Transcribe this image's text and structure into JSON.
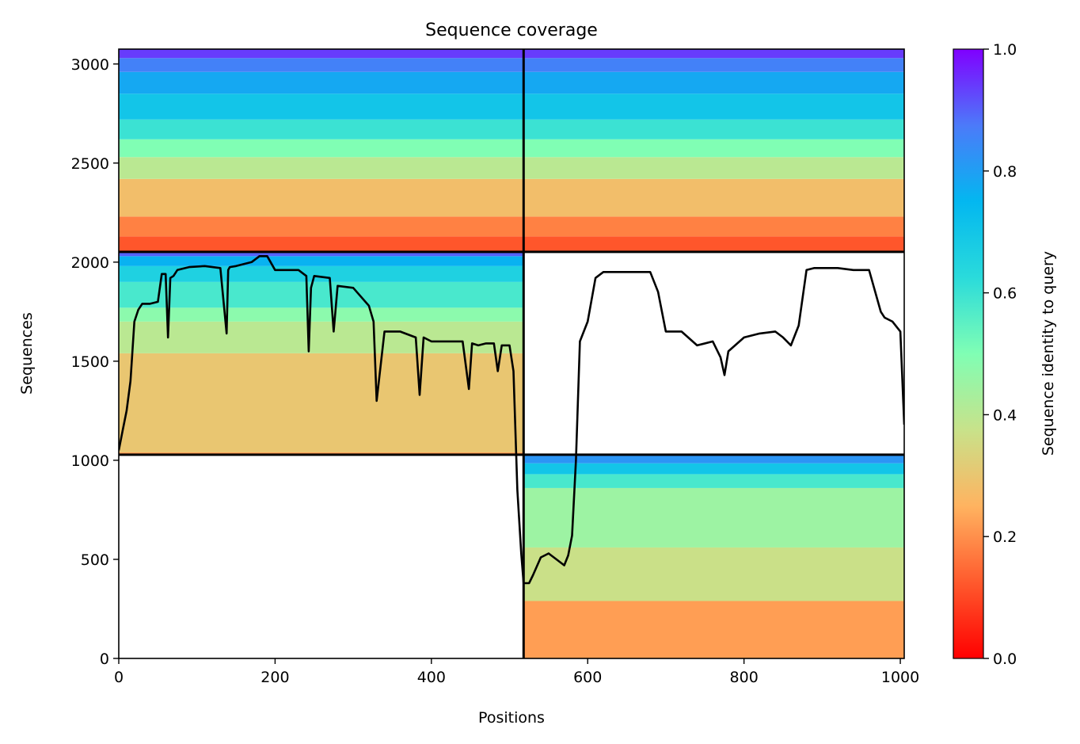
{
  "chart_data": {
    "type": "heatmap",
    "title": "Sequence coverage",
    "xlabel": "Positions",
    "ylabel": "Sequences",
    "xlim": [
      0,
      1005
    ],
    "ylim": [
      0,
      3075
    ],
    "xticks": [
      0,
      200,
      400,
      600,
      800,
      1000
    ],
    "yticks": [
      0,
      500,
      1000,
      1500,
      2000,
      2500,
      3000
    ],
    "colorbar": {
      "label": "Sequence identity to query",
      "range": [
        0.0,
        1.0
      ],
      "ticks": [
        "0.0",
        "0.2",
        "0.4",
        "0.6",
        "0.8",
        "1.0"
      ],
      "colormap": "rainbow"
    },
    "grid": false,
    "blocks": [
      {
        "name": "chain-1-msa",
        "x_range": [
          0,
          518
        ],
        "y_range": [
          1028,
          2052
        ],
        "identity_bands": [
          {
            "from": 1028,
            "to": 1040,
            "identity": 0.22
          },
          {
            "from": 1040,
            "to": 1540,
            "identity": 0.3
          },
          {
            "from": 1540,
            "to": 1700,
            "identity": 0.4
          },
          {
            "from": 1700,
            "to": 1770,
            "identity": 0.48
          },
          {
            "from": 1770,
            "to": 1900,
            "identity": 0.58
          },
          {
            "from": 1900,
            "to": 1980,
            "identity": 0.66
          },
          {
            "from": 1980,
            "to": 2030,
            "identity": 0.76
          },
          {
            "from": 2030,
            "to": 2052,
            "identity": 0.9
          }
        ]
      },
      {
        "name": "chain-2-msa",
        "x_range": [
          518,
          1005
        ],
        "y_range": [
          0,
          1025
        ],
        "identity_bands": [
          {
            "from": 0,
            "to": 290,
            "identity": 0.22
          },
          {
            "from": 290,
            "to": 560,
            "identity": 0.37
          },
          {
            "from": 560,
            "to": 860,
            "identity": 0.45
          },
          {
            "from": 860,
            "to": 930,
            "identity": 0.58
          },
          {
            "from": 930,
            "to": 985,
            "identity": 0.7
          },
          {
            "from": 985,
            "to": 1025,
            "identity": 0.82
          }
        ]
      },
      {
        "name": "paired-msa",
        "x_range": [
          0,
          1005
        ],
        "y_range": [
          2052,
          3075
        ],
        "identity_bands": [
          {
            "from": 2052,
            "to": 2130,
            "identity": 0.12
          },
          {
            "from": 2130,
            "to": 2230,
            "identity": 0.18
          },
          {
            "from": 2230,
            "to": 2420,
            "identity": 0.28
          },
          {
            "from": 2420,
            "to": 2530,
            "identity": 0.4
          },
          {
            "from": 2530,
            "to": 2620,
            "identity": 0.5
          },
          {
            "from": 2620,
            "to": 2720,
            "identity": 0.6
          },
          {
            "from": 2720,
            "to": 2850,
            "identity": 0.7
          },
          {
            "from": 2850,
            "to": 2960,
            "identity": 0.78
          },
          {
            "from": 2960,
            "to": 3030,
            "identity": 0.86
          },
          {
            "from": 3030,
            "to": 3075,
            "identity": 0.94
          }
        ]
      }
    ],
    "dividers": {
      "x": [
        518
      ],
      "y": [
        1028,
        2052
      ]
    },
    "coverage_line": {
      "name": "coverage",
      "color": "#000000",
      "x": [
        0,
        5,
        10,
        15,
        20,
        25,
        30,
        40,
        50,
        55,
        60,
        63,
        66,
        70,
        75,
        90,
        110,
        130,
        138,
        140,
        142,
        150,
        170,
        180,
        190,
        200,
        230,
        240,
        243,
        246,
        250,
        270,
        275,
        280,
        300,
        320,
        326,
        330,
        340,
        360,
        380,
        385,
        390,
        400,
        420,
        440,
        448,
        452,
        460,
        470,
        480,
        485,
        490,
        500,
        505,
        510,
        515,
        518,
        525,
        530,
        540,
        550,
        560,
        570,
        575,
        580,
        585,
        590,
        600,
        610,
        620,
        640,
        660,
        680,
        690,
        700,
        720,
        740,
        760,
        770,
        775,
        780,
        800,
        820,
        840,
        850,
        860,
        870,
        880,
        890,
        900,
        920,
        940,
        960,
        975,
        980,
        990,
        1000,
        1005
      ],
      "y": [
        1050,
        1150,
        1250,
        1400,
        1700,
        1760,
        1790,
        1790,
        1800,
        1940,
        1940,
        1620,
        1920,
        1930,
        1960,
        1975,
        1980,
        1970,
        1640,
        1960,
        1975,
        1980,
        2000,
        2030,
        2030,
        1960,
        1960,
        1930,
        1550,
        1870,
        1930,
        1920,
        1650,
        1880,
        1870,
        1780,
        1700,
        1300,
        1650,
        1650,
        1620,
        1330,
        1620,
        1600,
        1600,
        1600,
        1360,
        1590,
        1580,
        1590,
        1590,
        1450,
        1580,
        1580,
        1450,
        850,
        530,
        380,
        380,
        420,
        510,
        530,
        500,
        470,
        520,
        620,
        1000,
        1600,
        1700,
        1920,
        1950,
        1950,
        1950,
        1950,
        1850,
        1650,
        1650,
        1580,
        1600,
        1520,
        1430,
        1550,
        1620,
        1640,
        1650,
        1620,
        1580,
        1680,
        1960,
        1970,
        1970,
        1970,
        1960,
        1960,
        1750,
        1720,
        1700,
        1650,
        1180
      ]
    }
  }
}
